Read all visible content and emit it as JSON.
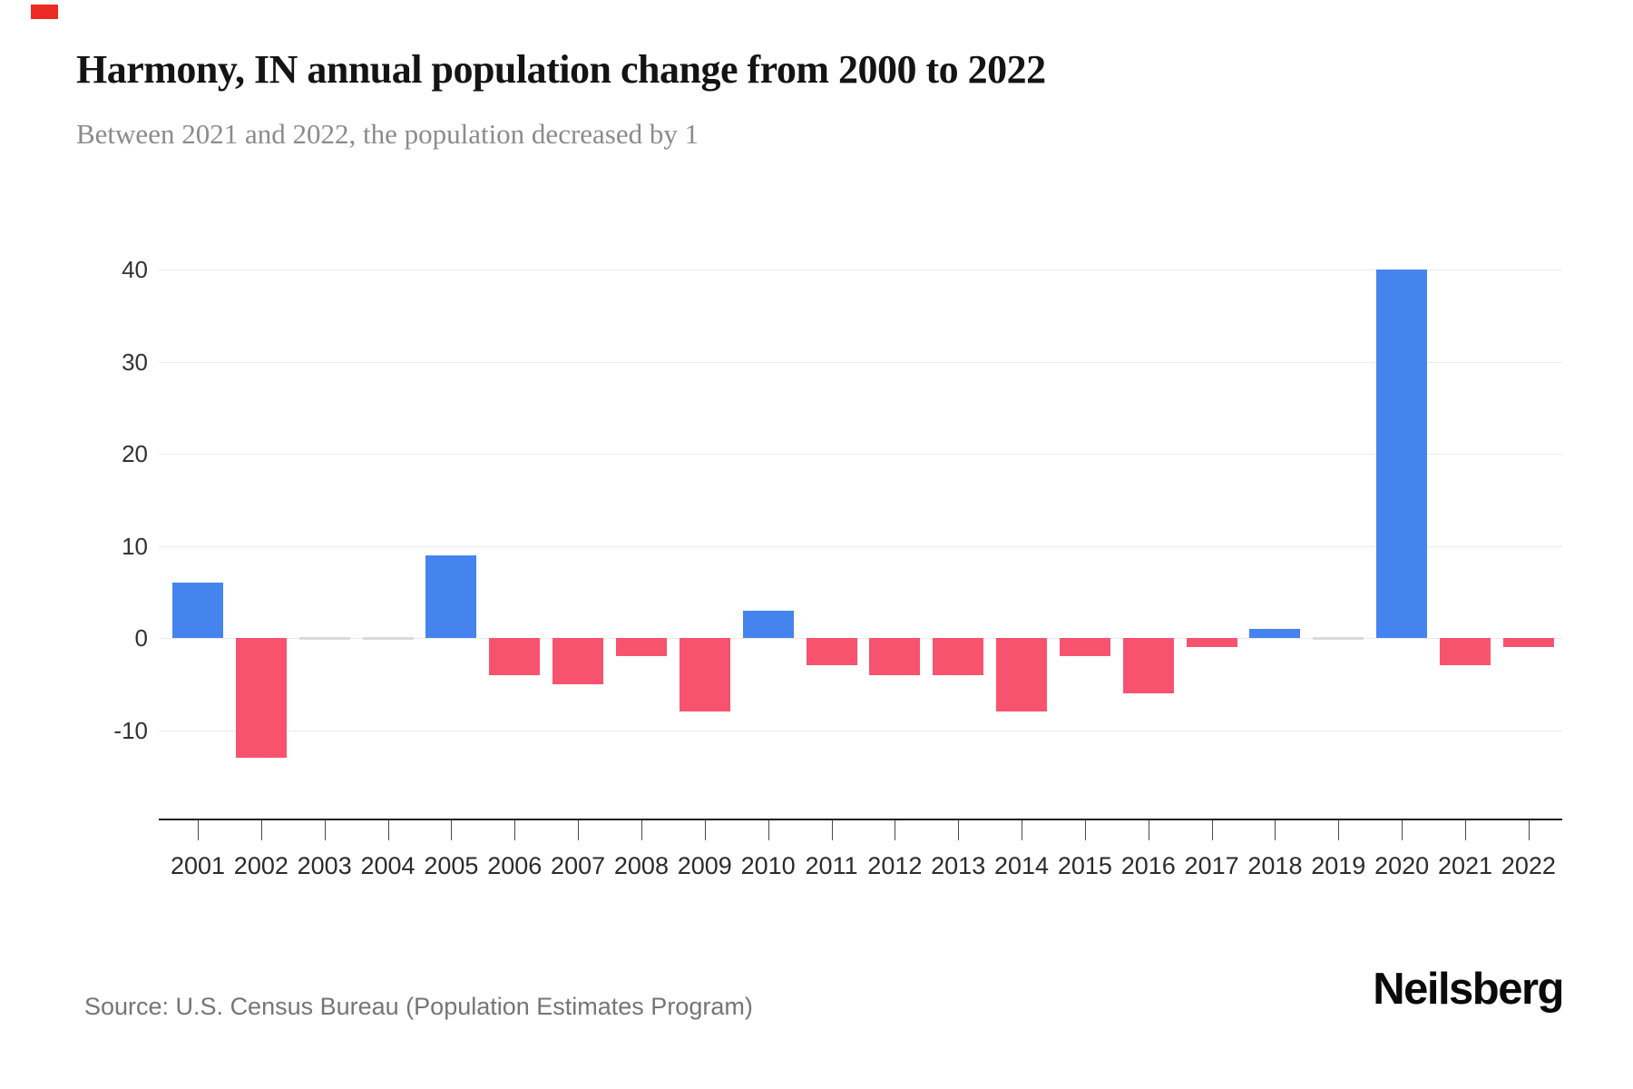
{
  "page": {
    "title": "Harmony, IN annual population change from 2000 to 2022",
    "subtitle": "Between 2021 and 2022, the population decreased by 1",
    "source": "Source: U.S. Census Bureau (Population Estimates Program)",
    "brand": "Neilsberg",
    "brand_mark_color": "#ec2c24"
  },
  "chart_data": {
    "type": "bar",
    "title": "Harmony, IN annual population change from 2000 to 2022",
    "subtitle": "Between 2021 and 2022, the population decreased by 1",
    "categories": [
      "2001",
      "2002",
      "2003",
      "2004",
      "2005",
      "2006",
      "2007",
      "2008",
      "2009",
      "2010",
      "2011",
      "2012",
      "2013",
      "2014",
      "2015",
      "2016",
      "2017",
      "2018",
      "2019",
      "2020",
      "2021",
      "2022"
    ],
    "values": [
      6,
      -13,
      0,
      0,
      9,
      -4,
      -5,
      -2,
      -8,
      3,
      -3,
      -4,
      -4,
      -8,
      -2,
      -6,
      -1,
      1,
      0,
      40,
      -3,
      -1
    ],
    "yticks": [
      40,
      30,
      20,
      10,
      0,
      -10
    ],
    "ylim": [
      -20,
      40
    ],
    "xlabel": "",
    "ylabel": "",
    "grid": true,
    "legend": "none",
    "colors": {
      "positive": "#4584ee",
      "negative": "#f7536f",
      "zero": "#d9d9d9",
      "gridline": "#ebebeb",
      "axis": "#1f1f1f"
    }
  }
}
